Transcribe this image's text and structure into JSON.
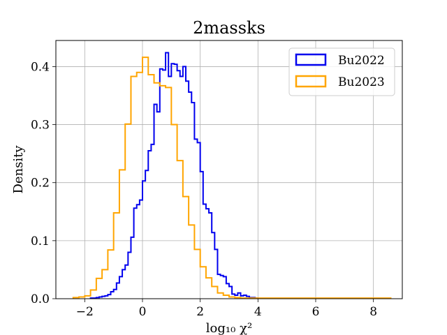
{
  "chart_data": {
    "type": "histogram",
    "title": "2massks",
    "xlabel": "log₁₀ χ²",
    "ylabel": "Density",
    "xlim": [
      -3.0,
      9.0
    ],
    "ylim": [
      0.0,
      0.445
    ],
    "xticks": [
      -2,
      0,
      2,
      4,
      6,
      8
    ],
    "xtick_labels": [
      "−2",
      "0",
      "2",
      "4",
      "6",
      "8"
    ],
    "yticks": [
      0.0,
      0.1,
      0.2,
      0.3,
      0.4
    ],
    "ytick_labels": [
      "0.0",
      "0.1",
      "0.2",
      "0.3",
      "0.4"
    ],
    "grid": true,
    "legend_position": "top-right",
    "series": [
      {
        "name": "Bu2022",
        "color": "#0000ee",
        "bin_edges": [
          -1.8,
          -1.7,
          -1.6,
          -1.5,
          -1.4,
          -1.3,
          -1.2,
          -1.1,
          -1.0,
          -0.9,
          -0.8,
          -0.7,
          -0.6,
          -0.5,
          -0.4,
          -0.3,
          -0.2,
          -0.1,
          0.0,
          0.1,
          0.2,
          0.3,
          0.4,
          0.5,
          0.6,
          0.7,
          0.8,
          0.9,
          1.0,
          1.1,
          1.2,
          1.3,
          1.4,
          1.5,
          1.6,
          1.7,
          1.8,
          1.9,
          2.0,
          2.1,
          2.2,
          2.3,
          2.4,
          2.5,
          2.6,
          2.7,
          2.8,
          2.9,
          3.0,
          3.1,
          3.2,
          3.3,
          3.4,
          3.5,
          3.6,
          3.7,
          3.8,
          3.9,
          4.0
        ],
        "values": [
          0.001,
          0.001,
          0.002,
          0.003,
          0.004,
          0.005,
          0.007,
          0.012,
          0.016,
          0.027,
          0.038,
          0.05,
          0.058,
          0.08,
          0.106,
          0.156,
          0.162,
          0.17,
          0.203,
          0.221,
          0.255,
          0.266,
          0.335,
          0.322,
          0.396,
          0.394,
          0.424,
          0.383,
          0.405,
          0.404,
          0.393,
          0.383,
          0.4,
          0.375,
          0.356,
          0.338,
          0.275,
          0.269,
          0.219,
          0.163,
          0.155,
          0.148,
          0.114,
          0.085,
          0.042,
          0.04,
          0.038,
          0.026,
          0.021,
          0.008,
          0.006,
          0.01,
          0.005,
          0.006,
          0.004,
          0.002,
          0.002,
          0.001
        ]
      },
      {
        "name": "Bu2023",
        "color": "#ffa500",
        "bin_edges": [
          -2.4,
          -2.2,
          -2.0,
          -1.8,
          -1.6,
          -1.4,
          -1.2,
          -1.0,
          -0.8,
          -0.6,
          -0.4,
          -0.2,
          0.0,
          0.2,
          0.4,
          0.6,
          0.8,
          1.0,
          1.2,
          1.4,
          1.6,
          1.8,
          2.0,
          2.2,
          2.4,
          2.6,
          2.8,
          3.0,
          3.2,
          3.4,
          3.6,
          3.8,
          4.0,
          4.2,
          4.4,
          4.6,
          4.8,
          5.0,
          5.2,
          5.4,
          5.6,
          5.8,
          6.0,
          6.2,
          6.4,
          6.6,
          6.8,
          7.0,
          7.2,
          7.4,
          7.6,
          7.8,
          8.0,
          8.2,
          8.4,
          8.6
        ],
        "values": [
          0.002,
          0.003,
          0.005,
          0.015,
          0.035,
          0.05,
          0.084,
          0.148,
          0.222,
          0.301,
          0.383,
          0.39,
          0.416,
          0.386,
          0.372,
          0.367,
          0.364,
          0.3,
          0.238,
          0.176,
          0.127,
          0.085,
          0.055,
          0.036,
          0.021,
          0.01,
          0.006,
          0.003,
          0.002,
          0.001,
          0.001,
          0.001,
          0.001,
          0.001,
          0.001,
          0.001,
          0.001,
          0.001,
          0.001,
          0.001,
          0.001,
          0.001,
          0.001,
          0.001,
          0.001,
          0.001,
          0.001,
          0.001,
          0.001,
          0.001,
          0.001,
          0.001,
          0.001,
          0.001,
          0.001
        ]
      }
    ]
  }
}
